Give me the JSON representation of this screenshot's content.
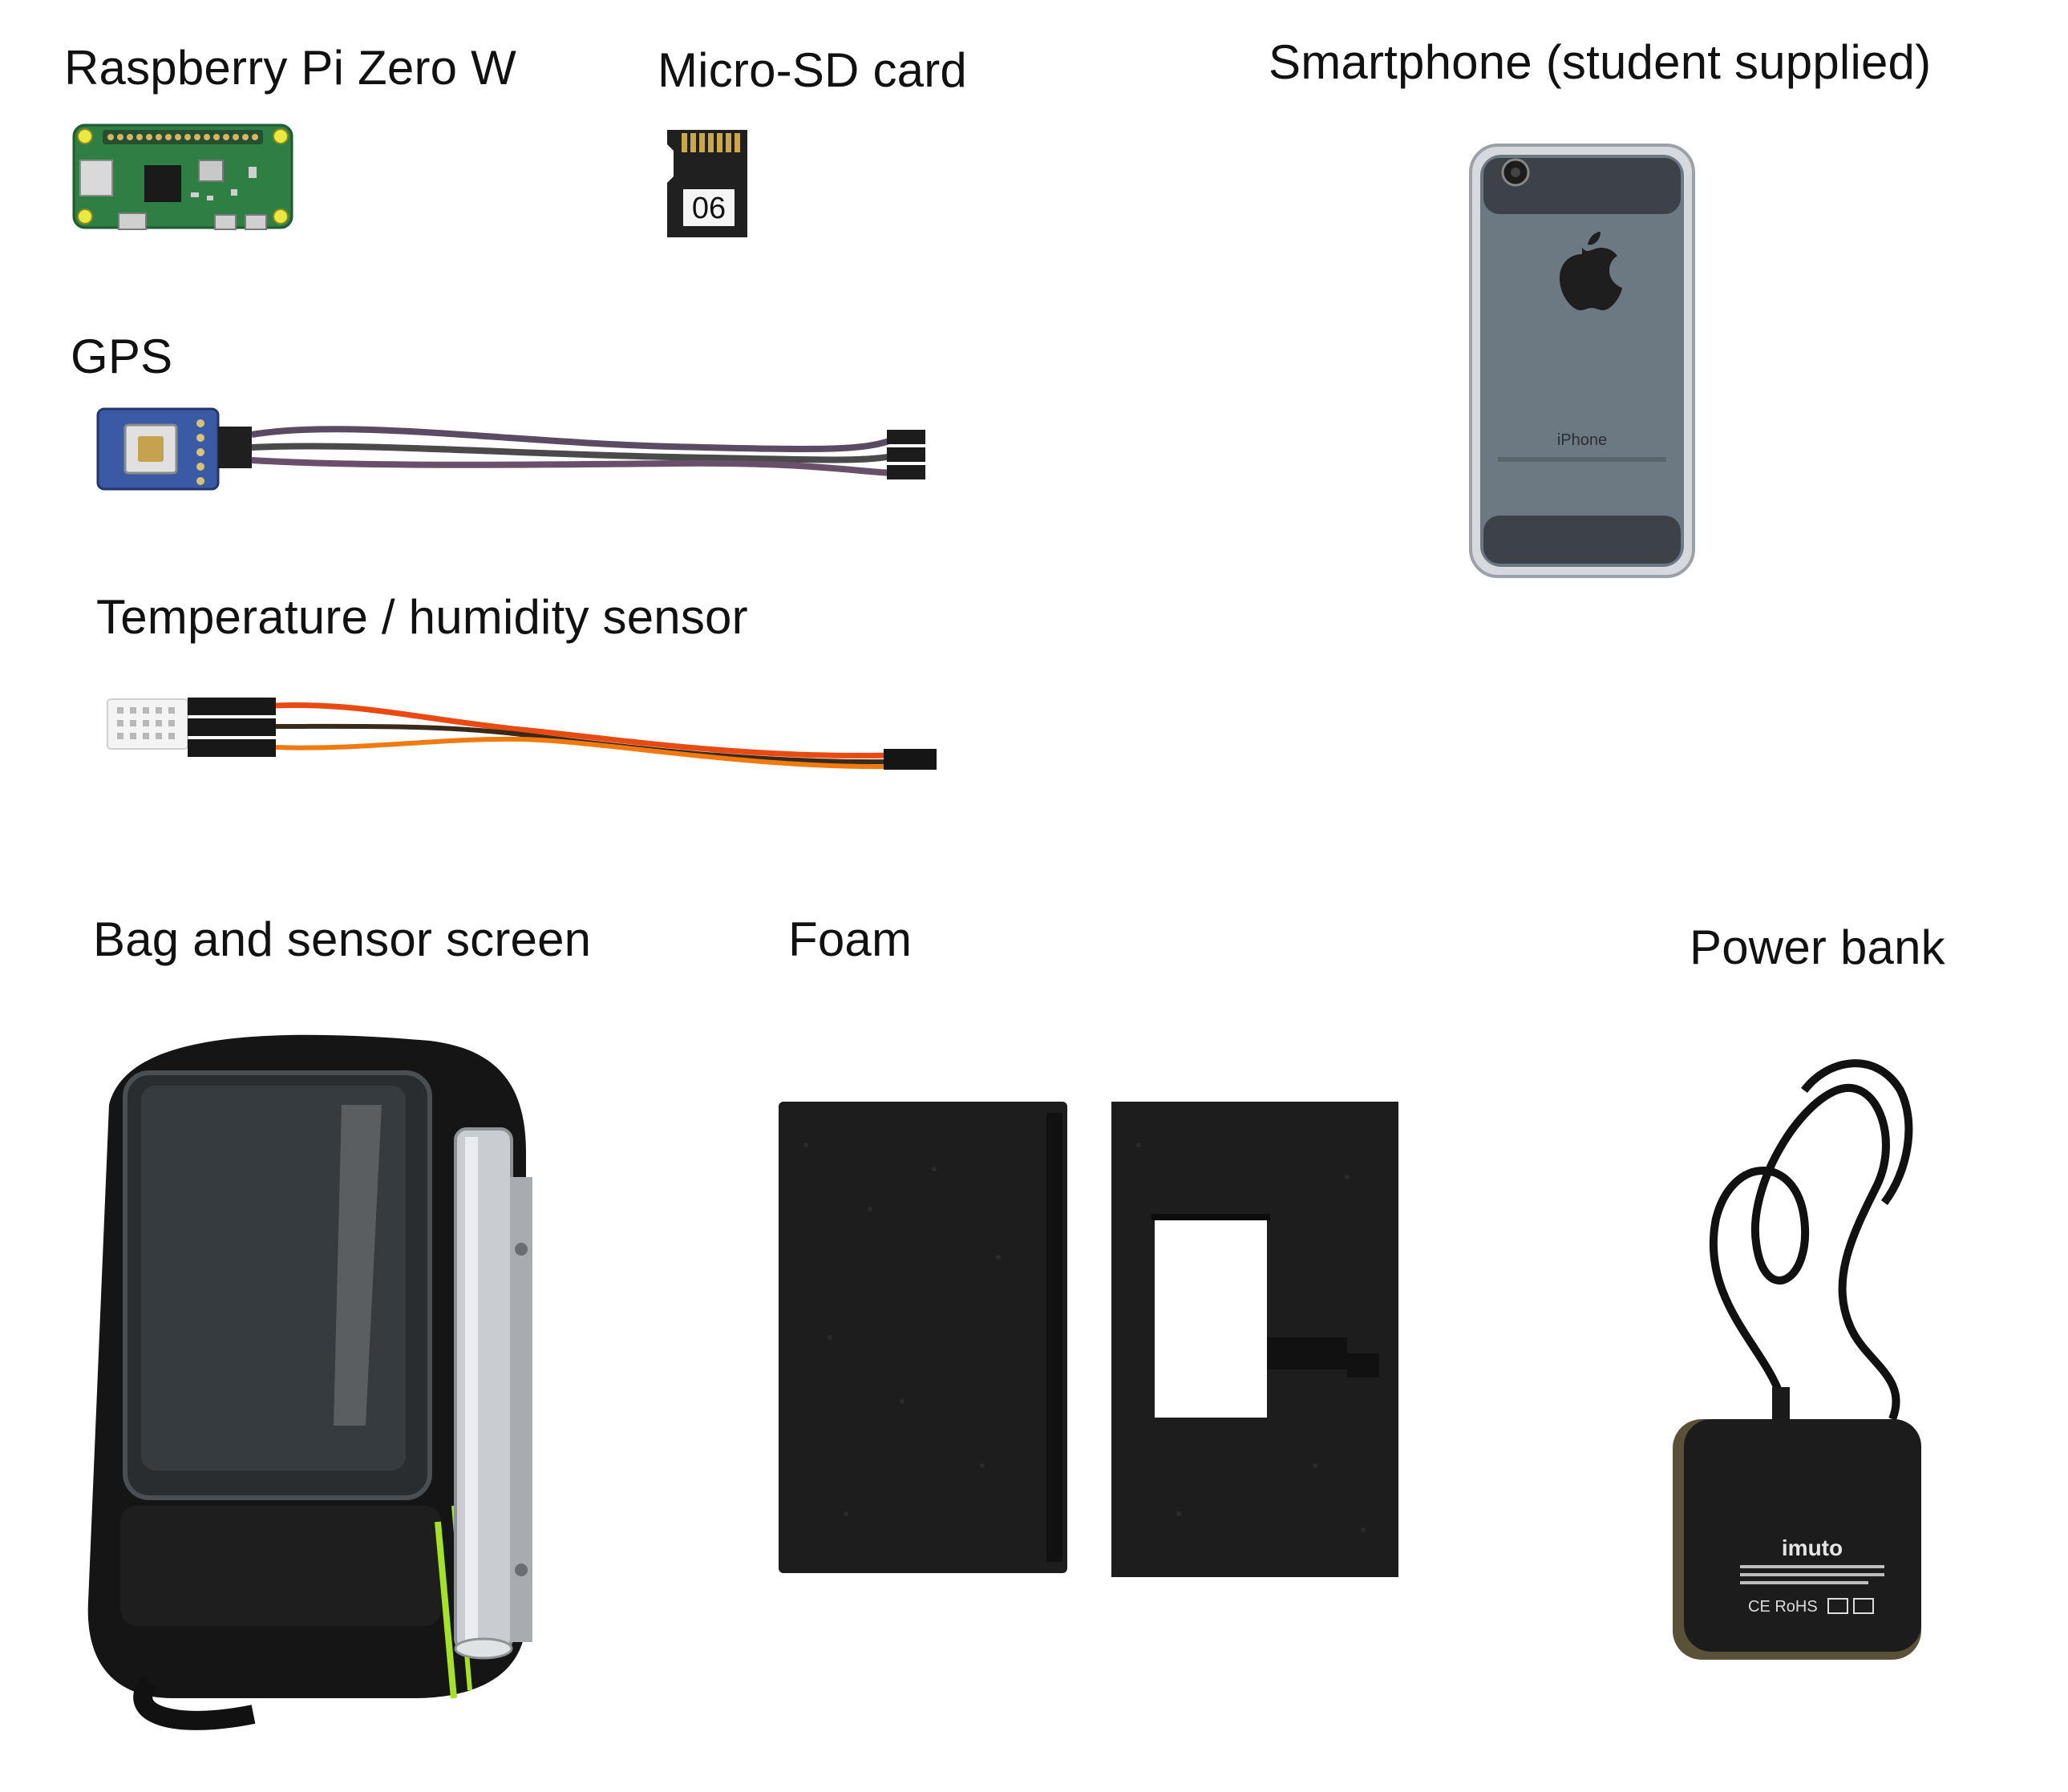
{
  "labels": {
    "raspberry_pi": "Raspberry Pi Zero W",
    "micro_sd": "Micro-SD card",
    "smartphone": "Smartphone (student supplied)",
    "gps": "GPS",
    "temp_humidity": "Temperature / humidity sensor",
    "bag_screen": "Bag and sensor screen",
    "foam": "Foam",
    "power_bank": "Power bank"
  },
  "item_text": {
    "sd_card_number": "06",
    "phone_brand": "iPhone",
    "power_bank_brand": "imuto",
    "power_bank_marks": "CE RoHS"
  },
  "colors": {
    "background": "#ffffff",
    "pcb_green": "#2f7f45",
    "foam_black": "#1d1d1d",
    "wire_orange": "#e84a12",
    "wire_purple": "#5b4a63",
    "phone_grey": "#6c7882",
    "bag_black": "#151515",
    "bag_accent": "#a6e12a",
    "aluminium": "#c9cdd2"
  }
}
